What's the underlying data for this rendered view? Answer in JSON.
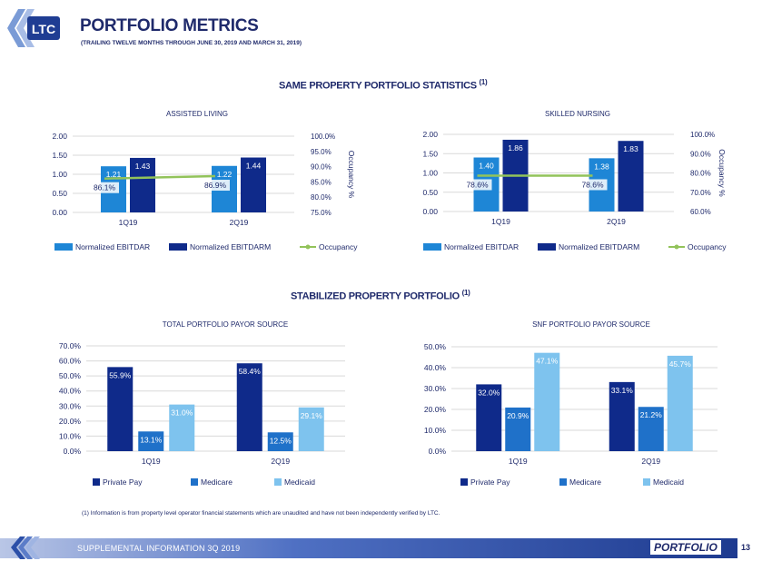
{
  "header": {
    "logo_text": "LTC",
    "title": "PORTFOLIO METRICS",
    "subtitle": "(TRAILING TWELVE MONTHS THROUGH JUNE 30, 2019 AND MARCH 31, 2019)"
  },
  "sections": {
    "same_property": "SAME PROPERTY PORTFOLIO STATISTICS",
    "stabilized": "STABILIZED PROPERTY PORTFOLIO",
    "note_marker": "(1)"
  },
  "colors": {
    "light_blue": "#1e86d6",
    "navy": "#0f2a8a",
    "green": "#92c35a",
    "pale_blue": "#7ec3ee",
    "mid_blue": "#1f71c9"
  },
  "chart_data": [
    {
      "id": "assisted",
      "type": "bar",
      "title": "ASSISTED LIVING",
      "categories": [
        "1Q19",
        "2Q19"
      ],
      "series": [
        {
          "name": "Normalized EBITDAR",
          "values": [
            1.21,
            1.22
          ],
          "labels": [
            "1.21",
            "1.22"
          ]
        },
        {
          "name": "Normalized EBITDARM",
          "values": [
            1.43,
            1.44
          ],
          "labels": [
            "1.43",
            "1.44"
          ]
        }
      ],
      "line": {
        "name": "Occupancy",
        "values": [
          86.1,
          86.9
        ],
        "labels": [
          "86.1%",
          "86.9%"
        ]
      },
      "ylim": [
        0,
        2
      ],
      "yticks": [
        "0.00",
        "0.50",
        "1.00",
        "1.50",
        "2.00"
      ],
      "y2lim": [
        75,
        100
      ],
      "y2ticks": [
        "75.0%",
        "80.0%",
        "85.0%",
        "90.0%",
        "95.0%",
        "100.0%"
      ],
      "y2label": "Occupancy %",
      "legend": "bottom"
    },
    {
      "id": "skilled",
      "type": "bar",
      "title": "SKILLED NURSING",
      "categories": [
        "1Q19",
        "2Q19"
      ],
      "series": [
        {
          "name": "Normalized EBITDAR",
          "values": [
            1.4,
            1.38
          ],
          "labels": [
            "1.40",
            "1.38"
          ]
        },
        {
          "name": "Normalized EBITDARM",
          "values": [
            1.86,
            1.83
          ],
          "labels": [
            "1.86",
            "1.83"
          ]
        }
      ],
      "line": {
        "name": "Occupancy",
        "values": [
          78.6,
          78.6
        ],
        "labels": [
          "78.6%",
          "78.6%"
        ]
      },
      "ylim": [
        0,
        2
      ],
      "yticks": [
        "0.00",
        "0.50",
        "1.00",
        "1.50",
        "2.00"
      ],
      "y2lim": [
        60,
        100
      ],
      "y2ticks": [
        "60.0%",
        "70.0%",
        "80.0%",
        "90.0%",
        "100.0%"
      ],
      "y2label": "Occupancy %",
      "legend": "bottom"
    },
    {
      "id": "total_payor",
      "type": "bar",
      "title": "TOTAL PORTFOLIO PAYOR SOURCE",
      "categories": [
        "1Q19",
        "2Q19"
      ],
      "series": [
        {
          "name": "Private Pay",
          "values": [
            55.9,
            58.4
          ],
          "labels": [
            "55.9%",
            "58.4%"
          ]
        },
        {
          "name": "Medicare",
          "values": [
            13.1,
            12.5
          ],
          "labels": [
            "13.1%",
            "12.5%"
          ]
        },
        {
          "name": "Medicaid",
          "values": [
            31.0,
            29.1
          ],
          "labels": [
            "31.0%",
            "29.1%"
          ]
        }
      ],
      "ylim": [
        0,
        70
      ],
      "yticks": [
        "0.0%",
        "10.0%",
        "20.0%",
        "30.0%",
        "40.0%",
        "50.0%",
        "60.0%",
        "70.0%"
      ],
      "legend": "bottom"
    },
    {
      "id": "snf_payor",
      "type": "bar",
      "title": "SNF PORTFOLIO PAYOR SOURCE",
      "categories": [
        "1Q19",
        "2Q19"
      ],
      "series": [
        {
          "name": "Private Pay",
          "values": [
            32.0,
            33.1
          ],
          "labels": [
            "32.0%",
            "33.1%"
          ]
        },
        {
          "name": "Medicare",
          "values": [
            20.9,
            21.2
          ],
          "labels": [
            "20.9%",
            "21.2%"
          ]
        },
        {
          "name": "Medicaid",
          "values": [
            47.1,
            45.7
          ],
          "labels": [
            "47.1%",
            "45.7%"
          ]
        }
      ],
      "ylim": [
        0,
        50
      ],
      "yticks": [
        "0.0%",
        "10.0%",
        "20.0%",
        "30.0%",
        "40.0%",
        "50.0%"
      ],
      "legend": "bottom"
    }
  ],
  "footnote": "(1)     Information is from property level operator financial statements which are unaudited and have not been independently  verified by LTC.",
  "footer": {
    "text": "SUPPLEMENTAL INFORMATION 3Q 2019",
    "section": "PORTFOLIO",
    "page": "13"
  }
}
